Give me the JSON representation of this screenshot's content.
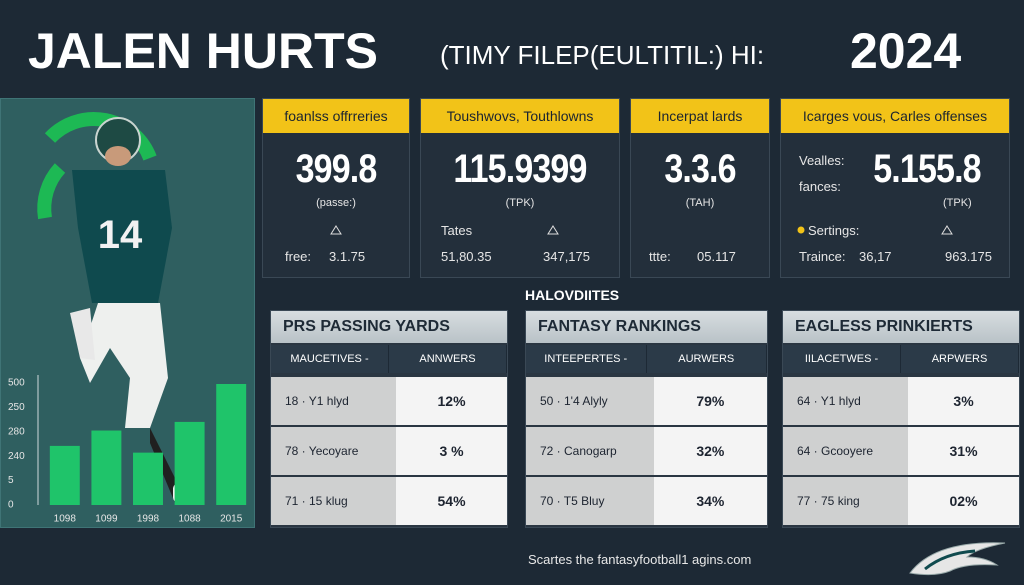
{
  "header": {
    "name": "JALEN HURTS",
    "subtitle": "(TIMY FILEP(EULTITIL:) HI:",
    "year": "2024"
  },
  "player": {
    "jersey_number": "14"
  },
  "mini_chart": {
    "type": "bar",
    "categories": [
      "1098",
      "1099",
      "1998",
      "1088",
      "2015"
    ],
    "values": [
      254,
      320,
      225,
      357,
      520
    ],
    "color": "#1fc46a",
    "ylim": [
      0,
      550
    ],
    "y_labels": [
      "500",
      "250",
      "280",
      "240",
      "5",
      "0"
    ]
  },
  "cards": [
    {
      "title": "foanlss offrreries",
      "value": "399.8",
      "unit": "(passe:)",
      "label": "free:",
      "stat": "3.1.75"
    },
    {
      "title": "Toushwovs, Touthlowns",
      "value": "115.9399",
      "unit": "(TPK)",
      "label": "Tates",
      "stat": "51,80.35",
      "stat2": "347,175"
    },
    {
      "title": "Incerpat lards",
      "value": "3.3.6",
      "unit": "(TAH)",
      "label": "ttte:",
      "stat": "05.117"
    },
    {
      "title": "Icarges vous, Carles offenses",
      "label_a": "Vealles:",
      "label_b": "fances:",
      "value": "5.155.8",
      "unit": "(TPK)",
      "label": "Sertings:",
      "label2": "Traince:",
      "stat": "36,17",
      "stat2": "963.175"
    }
  ],
  "section_title": "HALOVDIITES",
  "tables": [
    {
      "title": "PRS PASSING YARDS",
      "headers": [
        "MAUCETIVES -",
        "ANNWERS"
      ],
      "rows": [
        [
          "18 · Y1 hlyd",
          "12%"
        ],
        [
          "78 · Yecoyare",
          "3 %"
        ],
        [
          "71 · 15 klug",
          "54%"
        ]
      ]
    },
    {
      "title": "FANTASY RANKINGS",
      "headers": [
        "INTEEPERTES -",
        "AURWERS"
      ],
      "rows": [
        [
          "50 · 1'4 Alyly",
          "79%"
        ],
        [
          "72 · Canogarp",
          "32%"
        ],
        [
          "70 · T5 Bluy",
          "34%"
        ]
      ]
    },
    {
      "title": "EAGLESS PRINKIERTS",
      "headers": [
        "IILACETWES -",
        "ARPWERS"
      ],
      "rows": [
        [
          "64 · Y1 hlyd",
          "3%"
        ],
        [
          "64 · Gcooyere",
          "31%"
        ],
        [
          "77 · 75 king",
          "02%"
        ]
      ]
    }
  ],
  "footer": "Scartes the fantasyfootball1 agins.com"
}
